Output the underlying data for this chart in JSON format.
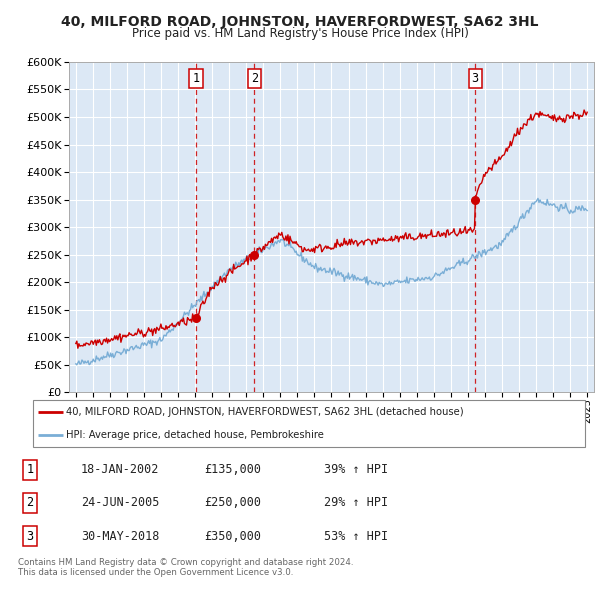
{
  "title": "40, MILFORD ROAD, JOHNSTON, HAVERFORDWEST, SA62 3HL",
  "subtitle": "Price paid vs. HM Land Registry's House Price Index (HPI)",
  "bg_color": "#ffffff",
  "plot_bg_color": "#dce8f5",
  "grid_color": "#ffffff",
  "red_line_color": "#cc0000",
  "blue_line_color": "#7aaed6",
  "sale_dates": [
    2002.05,
    2005.48,
    2018.42
  ],
  "sale_prices": [
    135000,
    250000,
    350000
  ],
  "sale_labels": [
    "1",
    "2",
    "3"
  ],
  "legend_entries": [
    "40, MILFORD ROAD, JOHNSTON, HAVERFORDWEST, SA62 3HL (detached house)",
    "HPI: Average price, detached house, Pembrokeshire"
  ],
  "table_rows": [
    [
      "1",
      "18-JAN-2002",
      "£135,000",
      "39% ↑ HPI"
    ],
    [
      "2",
      "24-JUN-2005",
      "£250,000",
      "29% ↑ HPI"
    ],
    [
      "3",
      "30-MAY-2018",
      "£350,000",
      "53% ↑ HPI"
    ]
  ],
  "footer": "Contains HM Land Registry data © Crown copyright and database right 2024.\nThis data is licensed under the Open Government Licence v3.0.",
  "ylim": [
    0,
    600000
  ],
  "yticks": [
    0,
    50000,
    100000,
    150000,
    200000,
    250000,
    300000,
    350000,
    400000,
    450000,
    500000,
    550000,
    600000
  ],
  "xlim_start": 1994.6,
  "xlim_end": 2025.4
}
